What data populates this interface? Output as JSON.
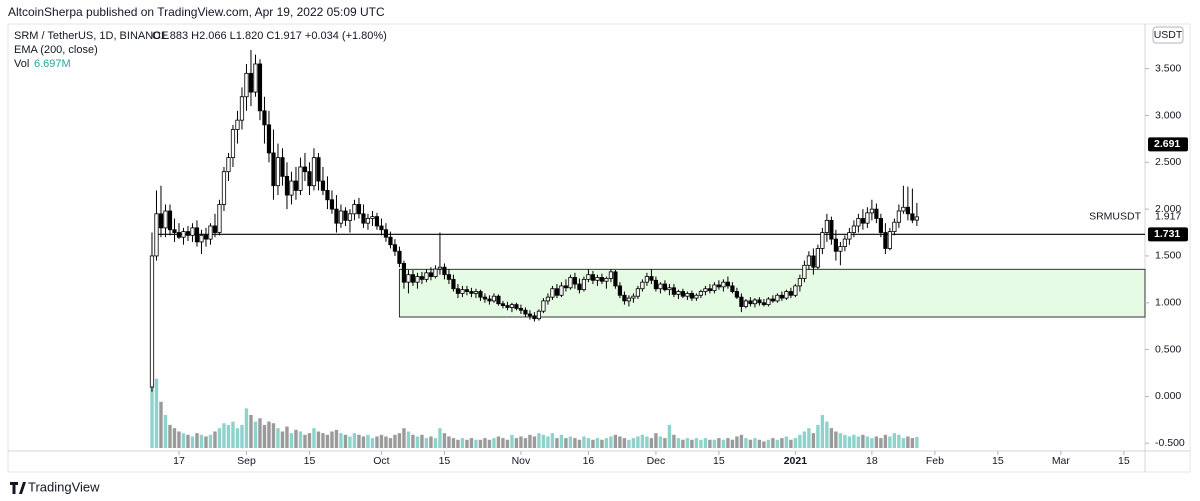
{
  "header": {
    "publisher": "AltcoinSherpa published on TradingView.com, Apr 19, 2022 05:09 UTC"
  },
  "footer": {
    "brand": "TradingView"
  },
  "chart_data": {
    "type": "candlestick",
    "symbol": "SRM / TetherUS, 1D, BINANCE",
    "ohlc_readout": "O1.883 H2.066 L1.820 C1.917 +0.034 (+1.80%)",
    "indicator": "EMA (200, close)",
    "volume_title": "Vol",
    "volume_label": "6.697M",
    "currency": "USDT",
    "series_name": "SRMUSDT",
    "last_price": {
      "value": 1.917,
      "label": "1.917"
    },
    "price_marker": {
      "value": 2.691,
      "label": "2.691"
    },
    "hline": {
      "value": 1.731,
      "label": "1.731",
      "start": 1
    },
    "zone": {
      "low": 0.848,
      "high": 1.357,
      "start": 55,
      "color": "#e6fbe3"
    },
    "up_color": "#ffffff",
    "down_color": "#000000",
    "wick_color": "#000000",
    "volume_up_color": "#8ed3cb",
    "volume_down_color": "#9a9a9a",
    "xlim": [
      -32,
      220.7
    ],
    "xticks": [
      {
        "value": 6,
        "label": "17"
      },
      {
        "value": 21,
        "label": "Sep"
      },
      {
        "value": 35,
        "label": "15"
      },
      {
        "value": 51,
        "label": "Oct"
      },
      {
        "value": 65,
        "label": "15"
      },
      {
        "value": 82,
        "label": "Nov"
      },
      {
        "value": 97,
        "label": "16"
      },
      {
        "value": 112,
        "label": "Dec"
      },
      {
        "value": 126,
        "label": "15"
      },
      {
        "value": 143,
        "label": "2021"
      },
      {
        "value": 160,
        "label": "18"
      },
      {
        "value": 174,
        "label": "Feb"
      },
      {
        "value": 188,
        "label": "15"
      },
      {
        "value": 202,
        "label": "Mar"
      },
      {
        "value": 216,
        "label": "15"
      }
    ],
    "ylim": [
      -0.583,
      3.977
    ],
    "yticks": [
      {
        "value": -0.5,
        "label": "-0.500"
      },
      {
        "value": 0,
        "label": "0.000"
      },
      {
        "value": 0.5,
        "label": "0.500"
      },
      {
        "value": 1,
        "label": "1.000"
      },
      {
        "value": 1.5,
        "label": "1.500"
      },
      {
        "value": 2,
        "label": "2.000"
      },
      {
        "value": 2.5,
        "label": "2.500"
      },
      {
        "value": 3,
        "label": "3.000"
      },
      {
        "value": 3.5,
        "label": "3.500"
      }
    ],
    "volume_lim": [
      0,
      100
    ],
    "candles": [
      [
        0.1,
        1.75,
        0.05,
        1.5
      ],
      [
        1.5,
        2.2,
        1.45,
        1.95
      ],
      [
        1.95,
        2.25,
        1.7,
        1.8
      ],
      [
        1.8,
        2.05,
        1.7,
        1.98
      ],
      [
        1.98,
        2.05,
        1.72,
        1.78
      ],
      [
        1.78,
        1.9,
        1.65,
        1.75
      ],
      [
        1.75,
        1.85,
        1.68,
        1.7
      ],
      [
        1.7,
        1.8,
        1.62,
        1.76
      ],
      [
        1.76,
        1.82,
        1.66,
        1.72
      ],
      [
        1.72,
        1.85,
        1.65,
        1.8
      ],
      [
        1.8,
        1.88,
        1.6,
        1.65
      ],
      [
        1.65,
        1.78,
        1.52,
        1.72
      ],
      [
        1.72,
        1.8,
        1.6,
        1.68
      ],
      [
        1.68,
        1.85,
        1.62,
        1.82
      ],
      [
        1.82,
        1.95,
        1.7,
        1.75
      ],
      [
        1.75,
        2.1,
        1.72,
        2.05
      ],
      [
        2.05,
        2.45,
        1.98,
        2.4
      ],
      [
        2.4,
        2.6,
        2.3,
        2.55
      ],
      [
        2.55,
        2.9,
        2.45,
        2.85
      ],
      [
        2.85,
        3.05,
        2.7,
        2.95
      ],
      [
        2.95,
        3.3,
        2.85,
        3.2
      ],
      [
        3.2,
        3.55,
        3.05,
        3.45
      ],
      [
        3.45,
        3.7,
        3.1,
        3.25
      ],
      [
        3.25,
        3.65,
        3.2,
        3.55
      ],
      [
        3.55,
        3.6,
        2.95,
        3.05
      ],
      [
        3.05,
        3.2,
        2.7,
        2.9
      ],
      [
        2.9,
        3.05,
        2.5,
        2.6
      ],
      [
        2.6,
        2.85,
        2.1,
        2.25
      ],
      [
        2.25,
        2.7,
        2.15,
        2.55
      ],
      [
        2.55,
        2.65,
        2.25,
        2.35
      ],
      [
        2.35,
        2.5,
        2.0,
        2.15
      ],
      [
        2.15,
        2.4,
        2.05,
        2.3
      ],
      [
        2.3,
        2.45,
        2.1,
        2.2
      ],
      [
        2.2,
        2.55,
        2.15,
        2.45
      ],
      [
        2.45,
        2.6,
        2.3,
        2.4
      ],
      [
        2.4,
        2.5,
        2.15,
        2.25
      ],
      [
        2.25,
        2.65,
        2.2,
        2.55
      ],
      [
        2.55,
        2.6,
        2.2,
        2.3
      ],
      [
        2.3,
        2.45,
        2.15,
        2.2
      ],
      [
        2.2,
        2.35,
        2.0,
        2.1
      ],
      [
        2.1,
        2.2,
        1.95,
        2.0
      ],
      [
        2.0,
        2.15,
        1.75,
        1.85
      ],
      [
        1.85,
        2.05,
        1.8,
        1.98
      ],
      [
        1.98,
        2.02,
        1.82,
        1.88
      ],
      [
        1.88,
        2.0,
        1.75,
        1.95
      ],
      [
        1.95,
        2.1,
        1.88,
        2.05
      ],
      [
        2.05,
        2.12,
        1.9,
        1.95
      ],
      [
        1.95,
        2.05,
        1.8,
        1.85
      ],
      [
        1.85,
        1.95,
        1.78,
        1.9
      ],
      [
        1.9,
        1.98,
        1.82,
        1.92
      ],
      [
        1.92,
        1.96,
        1.78,
        1.82
      ],
      [
        1.82,
        1.9,
        1.72,
        1.78
      ],
      [
        1.78,
        1.85,
        1.65,
        1.7
      ],
      [
        1.7,
        1.76,
        1.58,
        1.62
      ],
      [
        1.62,
        1.68,
        1.5,
        1.55
      ],
      [
        1.55,
        1.6,
        1.38,
        1.42
      ],
      [
        1.42,
        1.45,
        1.15,
        1.22
      ],
      [
        1.22,
        1.35,
        1.1,
        1.3
      ],
      [
        1.3,
        1.35,
        1.18,
        1.22
      ],
      [
        1.22,
        1.32,
        1.15,
        1.28
      ],
      [
        1.28,
        1.33,
        1.2,
        1.25
      ],
      [
        1.25,
        1.36,
        1.22,
        1.32
      ],
      [
        1.32,
        1.38,
        1.24,
        1.28
      ],
      [
        1.28,
        1.4,
        1.26,
        1.36
      ],
      [
        1.36,
        1.75,
        1.3,
        1.38
      ],
      [
        1.38,
        1.42,
        1.25,
        1.3
      ],
      [
        1.3,
        1.36,
        1.2,
        1.25
      ],
      [
        1.25,
        1.3,
        1.12,
        1.15
      ],
      [
        1.15,
        1.2,
        1.05,
        1.1
      ],
      [
        1.1,
        1.18,
        1.06,
        1.14
      ],
      [
        1.14,
        1.18,
        1.08,
        1.12
      ],
      [
        1.12,
        1.16,
        1.06,
        1.1
      ],
      [
        1.1,
        1.15,
        1.05,
        1.12
      ],
      [
        1.12,
        1.14,
        1.02,
        1.06
      ],
      [
        1.06,
        1.1,
        1.0,
        1.04
      ],
      [
        1.04,
        1.08,
        0.98,
        1.02
      ],
      [
        1.02,
        1.1,
        1.0,
        1.07
      ],
      [
        1.07,
        1.09,
        0.97,
        0.99
      ],
      [
        0.99,
        1.02,
        0.94,
        0.97
      ],
      [
        0.97,
        1.01,
        0.92,
        0.95
      ],
      [
        0.95,
        1.0,
        0.9,
        0.98
      ],
      [
        0.98,
        1.0,
        0.92,
        0.94
      ],
      [
        0.94,
        0.98,
        0.88,
        0.92
      ],
      [
        0.92,
        0.95,
        0.85,
        0.88
      ],
      [
        0.88,
        0.92,
        0.82,
        0.86
      ],
      [
        0.86,
        0.9,
        0.8,
        0.83
      ],
      [
        0.83,
        0.93,
        0.81,
        0.91
      ],
      [
        0.91,
        1.05,
        0.89,
        1.02
      ],
      [
        1.02,
        1.1,
        0.98,
        1.06
      ],
      [
        1.06,
        1.18,
        1.03,
        1.15
      ],
      [
        1.15,
        1.2,
        1.05,
        1.08
      ],
      [
        1.08,
        1.22,
        1.06,
        1.18
      ],
      [
        1.18,
        1.25,
        1.12,
        1.16
      ],
      [
        1.16,
        1.3,
        1.14,
        1.27
      ],
      [
        1.27,
        1.32,
        1.15,
        1.2
      ],
      [
        1.2,
        1.26,
        1.1,
        1.14
      ],
      [
        1.14,
        1.28,
        1.12,
        1.25
      ],
      [
        1.25,
        1.36,
        1.22,
        1.3
      ],
      [
        1.3,
        1.34,
        1.2,
        1.24
      ],
      [
        1.24,
        1.3,
        1.18,
        1.27
      ],
      [
        1.27,
        1.31,
        1.2,
        1.23
      ],
      [
        1.23,
        1.28,
        1.15,
        1.26
      ],
      [
        1.26,
        1.36,
        1.22,
        1.33
      ],
      [
        1.33,
        1.35,
        1.15,
        1.18
      ],
      [
        1.18,
        1.22,
        1.05,
        1.08
      ],
      [
        1.08,
        1.12,
        0.98,
        1.02
      ],
      [
        1.02,
        1.08,
        0.96,
        1.05
      ],
      [
        1.05,
        1.1,
        1.0,
        1.07
      ],
      [
        1.07,
        1.18,
        1.04,
        1.15
      ],
      [
        1.15,
        1.25,
        1.12,
        1.22
      ],
      [
        1.22,
        1.32,
        1.18,
        1.28
      ],
      [
        1.28,
        1.36,
        1.2,
        1.24
      ],
      [
        1.24,
        1.28,
        1.12,
        1.15
      ],
      [
        1.15,
        1.22,
        1.1,
        1.2
      ],
      [
        1.2,
        1.24,
        1.12,
        1.14
      ],
      [
        1.14,
        1.2,
        1.08,
        1.16
      ],
      [
        1.16,
        1.2,
        1.06,
        1.09
      ],
      [
        1.09,
        1.14,
        1.04,
        1.12
      ],
      [
        1.12,
        1.15,
        1.05,
        1.07
      ],
      [
        1.07,
        1.12,
        1.03,
        1.1
      ],
      [
        1.1,
        1.13,
        1.02,
        1.05
      ],
      [
        1.05,
        1.1,
        1.02,
        1.08
      ],
      [
        1.08,
        1.14,
        1.05,
        1.12
      ],
      [
        1.12,
        1.18,
        1.08,
        1.15
      ],
      [
        1.15,
        1.2,
        1.1,
        1.13
      ],
      [
        1.13,
        1.22,
        1.1,
        1.19
      ],
      [
        1.19,
        1.24,
        1.14,
        1.17
      ],
      [
        1.17,
        1.25,
        1.12,
        1.22
      ],
      [
        1.22,
        1.28,
        1.15,
        1.18
      ],
      [
        1.18,
        1.22,
        1.1,
        1.12
      ],
      [
        1.12,
        1.16,
        1.04,
        1.06
      ],
      [
        1.06,
        1.1,
        0.9,
        0.96
      ],
      [
        0.96,
        1.04,
        0.94,
        1.02
      ],
      [
        1.02,
        1.06,
        0.96,
        0.99
      ],
      [
        0.99,
        1.05,
        0.95,
        1.03
      ],
      [
        1.03,
        1.06,
        0.97,
        1.0
      ],
      [
        1.0,
        1.04,
        0.96,
        0.98
      ],
      [
        0.98,
        1.06,
        0.96,
        1.04
      ],
      [
        1.04,
        1.08,
        1.0,
        1.02
      ],
      [
        1.02,
        1.1,
        1.0,
        1.08
      ],
      [
        1.08,
        1.12,
        1.02,
        1.05
      ],
      [
        1.05,
        1.14,
        1.03,
        1.12
      ],
      [
        1.12,
        1.16,
        1.05,
        1.08
      ],
      [
        1.08,
        1.2,
        1.06,
        1.18
      ],
      [
        1.18,
        1.3,
        1.12,
        1.26
      ],
      [
        1.26,
        1.45,
        1.22,
        1.4
      ],
      [
        1.4,
        1.55,
        1.35,
        1.5
      ],
      [
        1.5,
        1.58,
        1.3,
        1.38
      ],
      [
        1.38,
        1.62,
        1.36,
        1.58
      ],
      [
        1.58,
        1.8,
        1.52,
        1.75
      ],
      [
        1.75,
        1.95,
        1.65,
        1.88
      ],
      [
        1.88,
        1.92,
        1.62,
        1.68
      ],
      [
        1.68,
        1.78,
        1.45,
        1.55
      ],
      [
        1.55,
        1.65,
        1.4,
        1.6
      ],
      [
        1.6,
        1.72,
        1.55,
        1.68
      ],
      [
        1.68,
        1.8,
        1.62,
        1.75
      ],
      [
        1.75,
        1.88,
        1.7,
        1.82
      ],
      [
        1.82,
        1.95,
        1.75,
        1.9
      ],
      [
        1.9,
        2.0,
        1.78,
        1.85
      ],
      [
        1.85,
        2.02,
        1.8,
        1.96
      ],
      [
        1.96,
        2.1,
        1.88,
        2.0
      ],
      [
        2.0,
        2.06,
        1.85,
        1.9
      ],
      [
        1.9,
        1.95,
        1.7,
        1.75
      ],
      [
        1.75,
        1.85,
        1.52,
        1.58
      ],
      [
        1.58,
        1.8,
        1.56,
        1.76
      ],
      [
        1.76,
        1.9,
        1.72,
        1.86
      ],
      [
        1.86,
        2.05,
        1.8,
        1.98
      ],
      [
        1.98,
        2.25,
        1.95,
        2.02
      ],
      [
        2.02,
        2.24,
        1.88,
        1.95
      ],
      [
        1.95,
        2.22,
        1.85,
        1.883
      ],
      [
        1.883,
        2.066,
        1.82,
        1.917
      ]
    ],
    "volume": [
      65,
      42,
      28,
      20,
      14,
      12,
      10,
      9,
      8,
      7,
      9,
      8,
      7,
      8,
      10,
      12,
      15,
      14,
      16,
      12,
      14,
      24,
      20,
      16,
      18,
      14,
      16,
      15,
      12,
      10,
      13,
      9,
      11,
      10,
      8,
      9,
      12,
      10,
      9,
      8,
      10,
      11,
      9,
      8,
      7,
      9,
      8,
      7,
      8,
      6,
      7,
      8,
      7,
      6,
      8,
      9,
      12,
      10,
      8,
      7,
      8,
      6,
      7,
      6,
      12,
      9,
      7,
      6,
      5,
      6,
      5,
      6,
      5,
      5,
      6,
      5,
      6,
      7,
      6,
      5,
      8,
      6,
      7,
      6,
      8,
      7,
      9,
      8,
      7,
      9,
      6,
      8,
      6,
      7,
      6,
      5,
      7,
      6,
      5,
      6,
      5,
      6,
      7,
      8,
      7,
      6,
      5,
      6,
      7,
      8,
      7,
      6,
      9,
      7,
      6,
      14,
      8,
      6,
      5,
      6,
      5,
      6,
      5,
      6,
      5,
      5,
      6,
      5,
      6,
      5,
      7,
      8,
      6,
      5,
      6,
      5,
      4,
      5,
      6,
      5,
      6,
      7,
      5,
      6,
      8,
      10,
      12,
      9,
      14,
      20,
      16,
      12,
      10,
      9,
      8,
      7,
      8,
      7,
      8,
      7,
      6,
      7,
      6,
      8,
      7,
      9,
      8,
      6,
      7,
      6,
      6.697
    ]
  }
}
